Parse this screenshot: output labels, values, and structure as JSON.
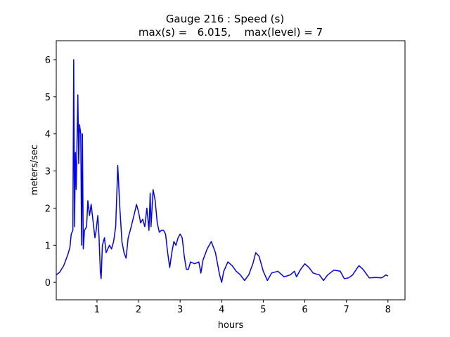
{
  "chart_data": {
    "type": "line",
    "title": "Gauge 216 : Speed (s)",
    "subtitle": "max(s) =   6.015,    max(level) = 7",
    "x_label": "hours",
    "y_label": "meters/sec",
    "x": [
      0.02,
      0.1,
      0.2,
      0.3,
      0.35,
      0.38,
      0.42,
      0.44,
      0.46,
      0.48,
      0.5,
      0.52,
      0.54,
      0.56,
      0.58,
      0.61,
      0.63,
      0.65,
      0.67,
      0.7,
      0.75,
      0.78,
      0.82,
      0.86,
      0.9,
      0.95,
      0.98,
      1.02,
      1.05,
      1.08,
      1.1,
      1.13,
      1.18,
      1.22,
      1.3,
      1.35,
      1.4,
      1.45,
      1.5,
      1.55,
      1.6,
      1.65,
      1.7,
      1.75,
      1.8,
      1.9,
      1.95,
      2.0,
      2.05,
      2.1,
      2.15,
      2.2,
      2.25,
      2.28,
      2.3,
      2.35,
      2.4,
      2.45,
      2.5,
      2.55,
      2.6,
      2.65,
      2.7,
      2.75,
      2.8,
      2.85,
      2.9,
      2.95,
      3.0,
      3.05,
      3.1,
      3.15,
      3.2,
      3.25,
      3.35,
      3.45,
      3.5,
      3.55,
      3.65,
      3.75,
      3.85,
      3.9,
      3.95,
      4.0,
      4.05,
      4.15,
      4.25,
      4.35,
      4.45,
      4.55,
      4.65,
      4.75,
      4.82,
      4.9,
      5.0,
      5.1,
      5.2,
      5.35,
      5.5,
      5.65,
      5.75,
      5.8,
      5.9,
      6.0,
      6.1,
      6.2,
      6.35,
      6.45,
      6.55,
      6.7,
      6.85,
      6.95,
      7.05,
      7.15,
      7.3,
      7.4,
      7.55,
      7.7,
      7.85,
      7.95,
      8.0
    ],
    "series": [
      {
        "name": "speed",
        "color": "#0000ff",
        "values": [
          0.2,
          0.27,
          0.45,
          0.75,
          0.95,
          1.3,
          1.4,
          6.0,
          1.5,
          3.5,
          2.5,
          3.8,
          5.05,
          3.2,
          4.25,
          4.0,
          1.0,
          4.0,
          0.9,
          1.4,
          1.5,
          2.2,
          1.8,
          2.1,
          1.7,
          1.2,
          1.4,
          1.8,
          1.2,
          0.3,
          0.1,
          1.0,
          1.2,
          0.8,
          1.0,
          0.9,
          1.1,
          1.5,
          3.15,
          2.0,
          1.1,
          0.8,
          0.65,
          1.2,
          1.4,
          1.85,
          2.1,
          1.9,
          1.6,
          1.7,
          1.5,
          2.0,
          1.4,
          2.4,
          1.5,
          2.5,
          2.2,
          1.6,
          1.35,
          1.4,
          1.4,
          1.3,
          0.8,
          0.4,
          0.8,
          1.1,
          1.0,
          1.2,
          1.3,
          1.2,
          0.7,
          0.35,
          0.35,
          0.55,
          0.5,
          0.55,
          0.25,
          0.6,
          0.9,
          1.1,
          0.8,
          0.5,
          0.2,
          0.0,
          0.3,
          0.55,
          0.45,
          0.3,
          0.2,
          0.05,
          0.2,
          0.5,
          0.8,
          0.7,
          0.3,
          0.05,
          0.25,
          0.3,
          0.15,
          0.2,
          0.3,
          0.15,
          0.35,
          0.5,
          0.4,
          0.25,
          0.2,
          0.05,
          0.2,
          0.33,
          0.3,
          0.1,
          0.12,
          0.2,
          0.45,
          0.35,
          0.12,
          0.13,
          0.12,
          0.2,
          0.17
        ]
      }
    ],
    "xlim": [
      0.02,
      8.41
    ],
    "ylim": [
      -0.47,
      6.51
    ],
    "xticks": [
      1,
      2,
      3,
      4,
      5,
      6,
      7,
      8
    ],
    "yticks": [
      0,
      1,
      2,
      3,
      4,
      5,
      6
    ],
    "grid": false
  }
}
